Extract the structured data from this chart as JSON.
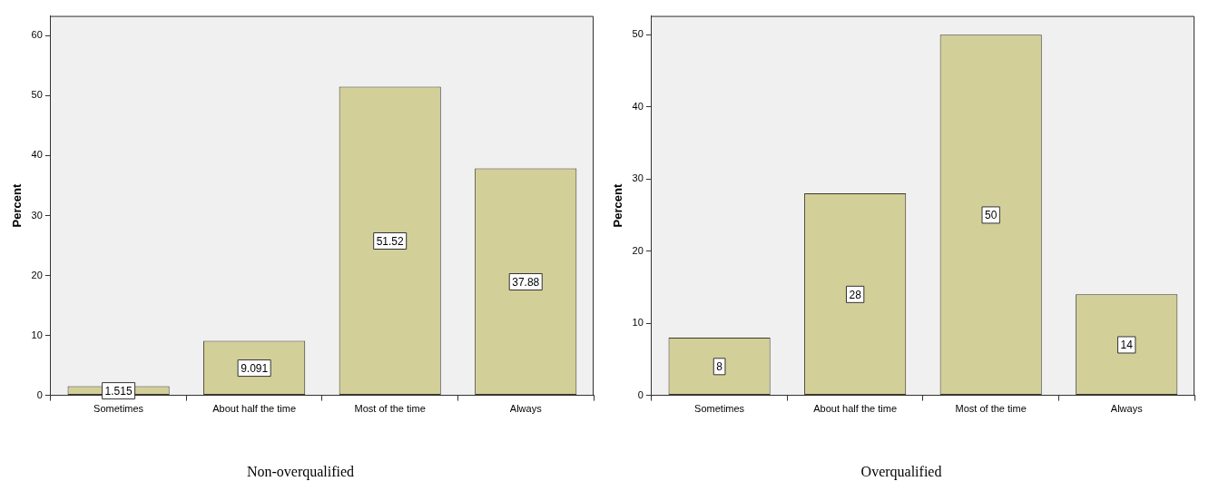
{
  "chart_data": [
    {
      "type": "bar",
      "title": "Non-overqualified",
      "ylabel": "Percent",
      "categories": [
        "Sometimes",
        "About half the time",
        "Most of the time",
        "Always"
      ],
      "values": [
        1.515,
        9.091,
        51.52,
        37.88
      ],
      "color": "#d3cf98",
      "ylim": [
        0,
        63.3
      ],
      "yticks": [
        0,
        10,
        20,
        30,
        40,
        50,
        60
      ],
      "grid": false,
      "legend": false,
      "data_labels": true
    },
    {
      "type": "bar",
      "title": "Overqualified",
      "ylabel": "Percent",
      "categories": [
        "Sometimes",
        "About half the time",
        "Most of the time",
        "Always"
      ],
      "values": [
        8,
        28,
        50,
        14
      ],
      "color": "#d3cf98",
      "ylim": [
        0,
        52.6
      ],
      "yticks": [
        0,
        10,
        20,
        30,
        40,
        50
      ],
      "grid": false,
      "legend": false,
      "data_labels": true
    }
  ]
}
